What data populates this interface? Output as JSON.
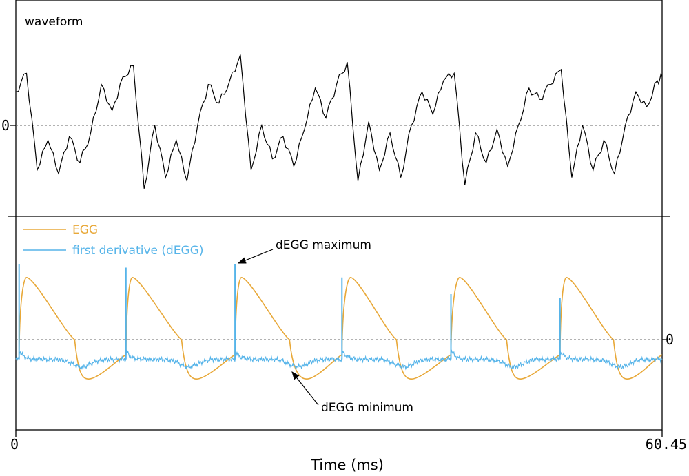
{
  "chart_data": {
    "type": "line",
    "xlabel": "Time (ms)",
    "xlim": [
      0,
      60.45
    ],
    "x_tick_labels": [
      "0",
      "60.45"
    ],
    "panels": [
      {
        "label": "waveform",
        "zero_label": "0",
        "ylim": [
          -1,
          1
        ],
        "series": [
          {
            "color": "#000000",
            "x": [
              0,
              1,
              2,
              3,
              4,
              5,
              6,
              7,
              8,
              9,
              10,
              11,
              12,
              13,
              14,
              15,
              16,
              17,
              18,
              19,
              20,
              21,
              22,
              23,
              24,
              25,
              26,
              27,
              28,
              29,
              30,
              31,
              32,
              33,
              34,
              35,
              36,
              37,
              38,
              39,
              40,
              41,
              42,
              43,
              44,
              45,
              46,
              47,
              48,
              49,
              50,
              51,
              52,
              53,
              54,
              55,
              56,
              57,
              58,
              59,
              60,
              60.45
            ],
            "values": [
              0.45,
              0.7,
              -0.6,
              -0.2,
              -0.65,
              -0.15,
              -0.5,
              -0.1,
              0.55,
              0.2,
              0.65,
              0.8,
              -0.85,
              0.0,
              -0.7,
              -0.2,
              -0.75,
              0.0,
              0.55,
              0.3,
              0.6,
              0.95,
              -0.6,
              0.0,
              -0.45,
              -0.15,
              -0.55,
              -0.05,
              0.5,
              0.1,
              0.55,
              0.85,
              -0.75,
              0.05,
              -0.6,
              -0.1,
              -0.7,
              0.0,
              0.45,
              0.15,
              0.6,
              0.7,
              -0.8,
              -0.1,
              -0.5,
              -0.05,
              -0.55,
              0.0,
              0.5,
              0.35,
              0.55,
              0.75,
              -0.7,
              0.0,
              -0.6,
              -0.2,
              -0.65,
              0.0,
              0.45,
              0.25,
              0.6,
              0.65
            ]
          }
        ]
      },
      {
        "zero_label": "0",
        "ylim": [
          -1,
          1
        ],
        "legend": [
          {
            "label": "EGG",
            "color": "#e8a838"
          },
          {
            "label": "first derivative (dEGG)",
            "color": "#56b4e9"
          }
        ],
        "annotations": [
          {
            "text": "dEGG maximum",
            "x": 20.5,
            "y": 0.99
          },
          {
            "text": "dEGG minimum",
            "x": 25.8,
            "y": -0.42
          }
        ],
        "cycles": [
          {
            "start": 0.3,
            "peak": 1.0,
            "end_fall": 5.5,
            "min": 6.8,
            "next": 10.3
          },
          {
            "start": 10.3,
            "peak": 10.9,
            "end_fall": 15.5,
            "min": 16.9,
            "next": 20.5
          },
          {
            "start": 20.5,
            "peak": 21.1,
            "end_fall": 25.6,
            "min": 27.2,
            "next": 30.5
          },
          {
            "start": 30.5,
            "peak": 31.3,
            "end_fall": 35.6,
            "min": 37.0,
            "next": 40.7
          },
          {
            "start": 40.7,
            "peak": 41.5,
            "end_fall": 45.9,
            "min": 47.2,
            "next": 50.9
          },
          {
            "start": 50.9,
            "peak": 51.5,
            "end_fall": 55.9,
            "min": 57.2,
            "next": 60.45
          }
        ],
        "egg_peak_value": 0.82,
        "egg_min_value": -0.52,
        "egg_start_value": -0.2,
        "degg_baseline": -0.26,
        "degg_spike_heights": [
          1.0,
          0.95,
          1.0,
          0.82,
          0.6,
          0.55
        ]
      }
    ]
  }
}
